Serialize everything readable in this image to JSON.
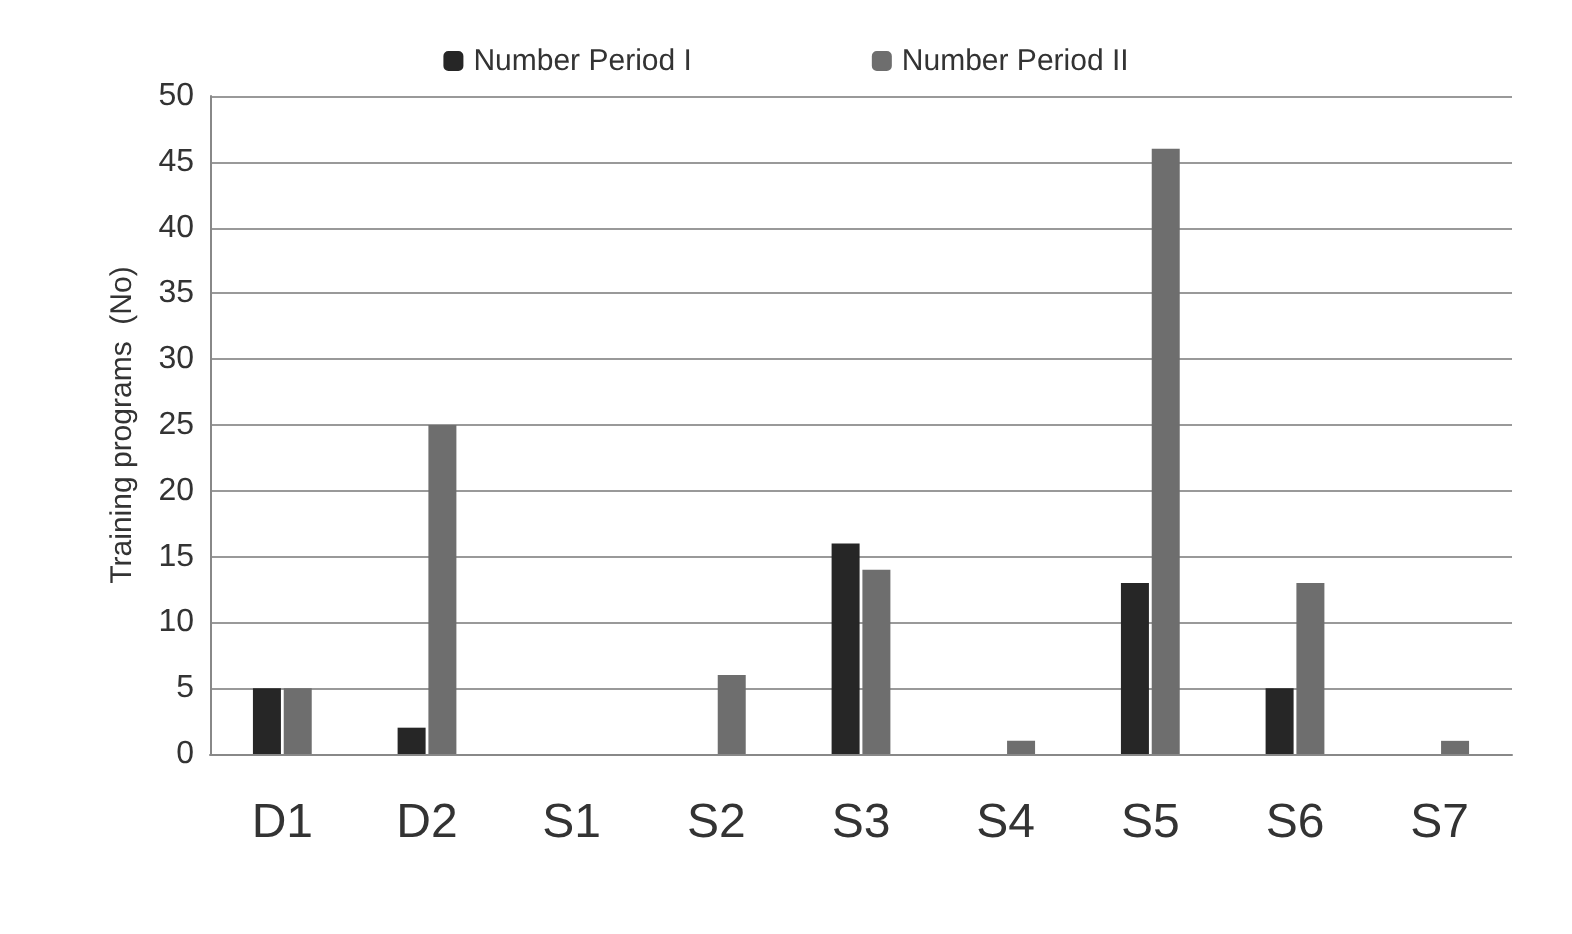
{
  "chart_data": {
    "type": "bar",
    "ylabel": "Training programs  (No)",
    "categories": [
      "D1",
      "D2",
      "S1",
      "S2",
      "S3",
      "S4",
      "S5",
      "S6",
      "S7"
    ],
    "series": [
      {
        "name": "Number Period I",
        "color": "#262626",
        "values": [
          5,
          2,
          0,
          0,
          16,
          0,
          13,
          5,
          0
        ]
      },
      {
        "name": "Number Period II",
        "color": "#6e6e6e",
        "values": [
          5,
          25,
          0,
          6,
          14,
          1,
          46,
          13,
          1
        ]
      }
    ],
    "ylim": [
      0,
      50
    ],
    "yticks": [
      0,
      5,
      10,
      15,
      20,
      25,
      30,
      35,
      40,
      45,
      50
    ],
    "grid": "y",
    "legend": "top"
  }
}
